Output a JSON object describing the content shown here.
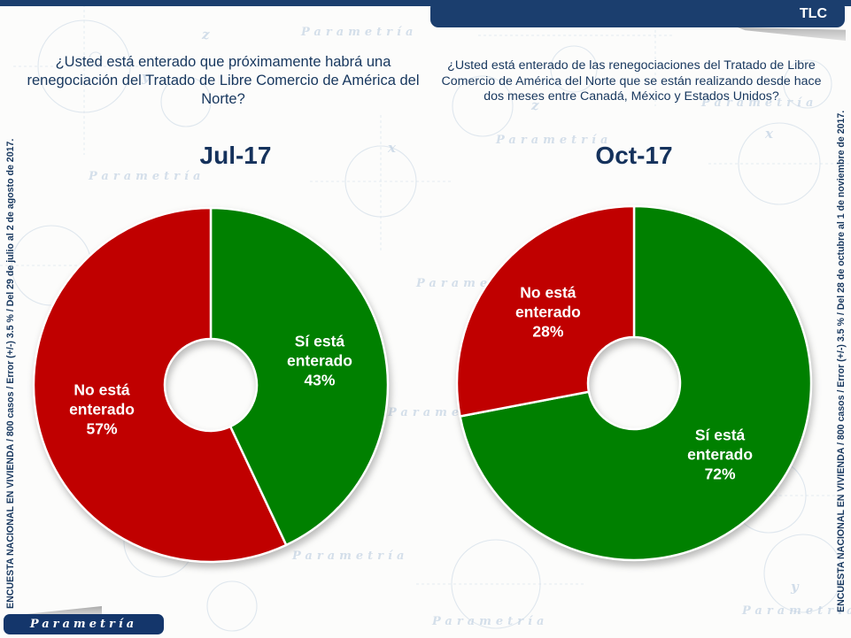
{
  "palette": {
    "navy_bar": "#1b3e6e",
    "text_navy": "#17375e",
    "red": "#C00000",
    "green": "#008000",
    "watermark_blue": "#c7d5e4"
  },
  "header": {
    "tab_label": "TLC"
  },
  "background": {
    "watermark_text": "Parametría",
    "letters": [
      "x",
      "y",
      "z"
    ]
  },
  "panels": [
    {
      "question": "¿Usted está enterado que próximamente habrá una renegociación del Tratado de Libre Comercio de América del Norte?",
      "title": "Jul-17",
      "side_note": "ENCUESTA NACIONAL EN VIVIENDA / 800 casos / Error (+/-) 3.5 % / Del 29 de julio al 2 de agosto de 2017."
    },
    {
      "question": "¿Usted está enterado de las renegociaciones del Tratado de Libre Comercio de América del Norte que se están realizando desde hace dos meses entre Canadá, México y Estados Unidos?",
      "title": "Oct-17",
      "side_note": "ENCUESTA NACIONAL EN VIVIENDA / 800 casos / Error (+/-) 3.5 % / Del 28 de octubre al 1 de noviembre de 2017."
    }
  ],
  "chart_data": [
    {
      "type": "pie",
      "title": "Jul-17",
      "donut": true,
      "start_angle_deg": 0,
      "direction": "clockwise",
      "categories": [
        "Sí está enterado",
        "No está enterado"
      ],
      "values": [
        43,
        57
      ],
      "colors": [
        "#008000",
        "#C00000"
      ],
      "data_labels": [
        "Sí está enterado 43%",
        "No está enterado 57%"
      ],
      "legend": "none"
    },
    {
      "type": "pie",
      "title": "Oct-17",
      "donut": true,
      "start_angle_deg": 0,
      "direction": "clockwise",
      "categories": [
        "Sí está enterado",
        "No está enterado"
      ],
      "values": [
        72,
        28
      ],
      "colors": [
        "#008000",
        "#C00000"
      ],
      "data_labels": [
        "Sí está enterado 72%",
        "No está enterado 28%"
      ],
      "legend": "none"
    }
  ],
  "footer": {
    "logo_text": "Parametría"
  }
}
